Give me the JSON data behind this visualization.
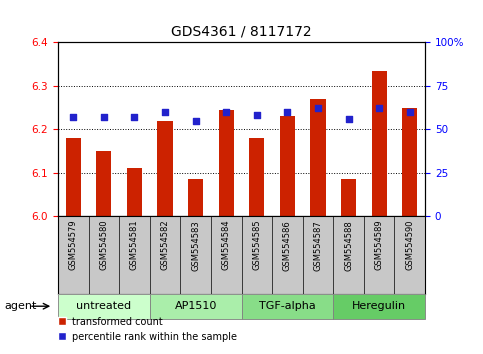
{
  "title": "GDS4361 / 8117172",
  "samples": [
    "GSM554579",
    "GSM554580",
    "GSM554581",
    "GSM554582",
    "GSM554583",
    "GSM554584",
    "GSM554585",
    "GSM554586",
    "GSM554587",
    "GSM554588",
    "GSM554589",
    "GSM554590"
  ],
  "bar_values": [
    6.18,
    6.15,
    6.11,
    6.22,
    6.085,
    6.245,
    6.18,
    6.23,
    6.27,
    6.085,
    6.335,
    6.25
  ],
  "dot_values": [
    57,
    57,
    57,
    60,
    55,
    60,
    58,
    60,
    62,
    56,
    62,
    60
  ],
  "ylim_left": [
    6.0,
    6.4
  ],
  "ylim_right": [
    0,
    100
  ],
  "yticks_left": [
    6.0,
    6.1,
    6.2,
    6.3,
    6.4
  ],
  "yticks_right": [
    0,
    25,
    50,
    75,
    100
  ],
  "bar_color": "#cc2200",
  "dot_color": "#2222cc",
  "bar_bottom": 6.0,
  "groups": [
    {
      "label": "untreated",
      "start": 0,
      "end": 3,
      "color": "#ccffcc"
    },
    {
      "label": "AP1510",
      "start": 3,
      "end": 6,
      "color": "#aaeeaa"
    },
    {
      "label": "TGF-alpha",
      "start": 6,
      "end": 9,
      "color": "#88dd88"
    },
    {
      "label": "Heregulin",
      "start": 9,
      "end": 12,
      "color": "#66cc66"
    }
  ],
  "legend_bar_label": "transformed count",
  "legend_dot_label": "percentile rank within the sample",
  "agent_label": "agent",
  "background_color": "#ffffff",
  "tick_label_area_color": "#c8c8c8",
  "grid_color": "#000000",
  "title_fontsize": 10,
  "tick_fontsize": 7.5,
  "sample_fontsize": 6,
  "group_fontsize": 8
}
